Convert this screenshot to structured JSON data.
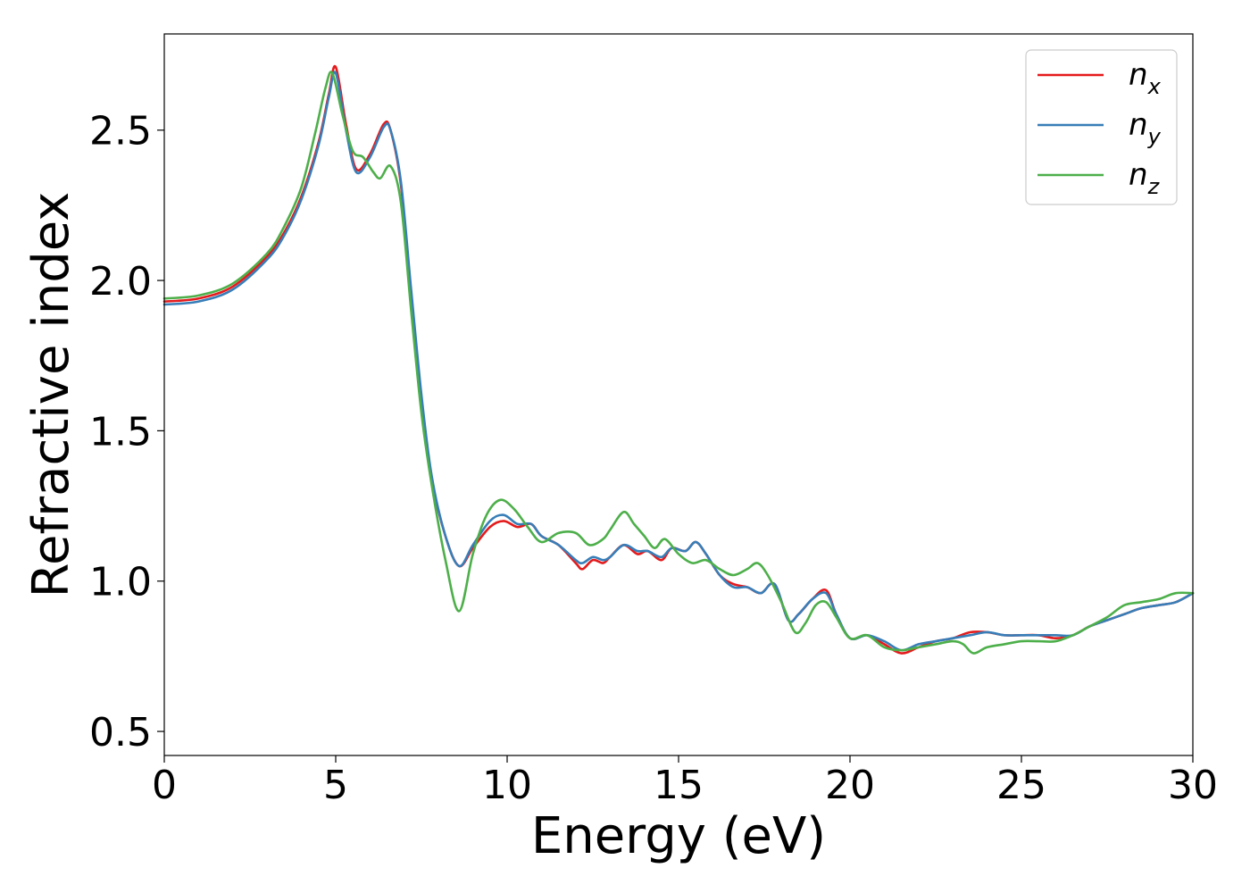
{
  "chart_data": {
    "type": "line",
    "xlabel": "Energy (eV)",
    "ylabel": "Refractive index",
    "xlim": [
      0,
      30
    ],
    "ylim": [
      0.42,
      2.82
    ],
    "xticks": [
      "0",
      "5",
      "10",
      "15",
      "20",
      "25",
      "30"
    ],
    "yticks": [
      "0.5",
      "1.0",
      "1.5",
      "2.0",
      "2.5"
    ],
    "grid": false,
    "legend_position": "top-right",
    "series": [
      {
        "name": "n_x",
        "label_base": "n",
        "label_sub": "x",
        "color": "#e41a1c",
        "x": [
          0,
          1,
          2,
          3,
          3.5,
          4,
          4.5,
          4.8,
          5.0,
          5.3,
          5.6,
          6.0,
          6.4,
          6.6,
          6.9,
          7.2,
          7.5,
          7.8,
          8.2,
          8.6,
          9.0,
          9.5,
          9.9,
          10.3,
          10.7,
          11.0,
          11.5,
          12.0,
          12.2,
          12.5,
          12.8,
          13.0,
          13.4,
          13.8,
          14.1,
          14.5,
          14.8,
          15.2,
          15.5,
          15.8,
          16.2,
          16.6,
          17.0,
          17.4,
          17.8,
          18.2,
          18.5,
          18.9,
          19.3,
          19.6,
          20.0,
          20.5,
          21.0,
          21.5,
          22.0,
          22.5,
          23.0,
          23.5,
          24.0,
          24.5,
          25.0,
          25.5,
          26.0,
          26.5,
          27.0,
          27.5,
          28.0,
          28.5,
          29.0,
          29.5,
          30.0
        ],
        "y": [
          1.93,
          1.94,
          1.98,
          2.08,
          2.16,
          2.28,
          2.46,
          2.62,
          2.71,
          2.52,
          2.37,
          2.42,
          2.52,
          2.5,
          2.32,
          1.95,
          1.6,
          1.34,
          1.15,
          1.05,
          1.11,
          1.18,
          1.2,
          1.18,
          1.19,
          1.15,
          1.12,
          1.06,
          1.04,
          1.07,
          1.06,
          1.08,
          1.12,
          1.09,
          1.1,
          1.07,
          1.11,
          1.1,
          1.13,
          1.09,
          1.02,
          0.99,
          0.98,
          0.96,
          0.99,
          0.87,
          0.89,
          0.94,
          0.97,
          0.89,
          0.81,
          0.82,
          0.79,
          0.76,
          0.78,
          0.8,
          0.81,
          0.83,
          0.83,
          0.82,
          0.82,
          0.82,
          0.81,
          0.82,
          0.85,
          0.87,
          0.89,
          0.91,
          0.92,
          0.93,
          0.96
        ]
      },
      {
        "name": "n_y",
        "label_base": "n",
        "label_sub": "y",
        "color": "#377eb8",
        "x": [
          0,
          1,
          2,
          3,
          3.5,
          4,
          4.5,
          4.8,
          5.0,
          5.3,
          5.6,
          6.0,
          6.4,
          6.6,
          6.9,
          7.2,
          7.5,
          7.8,
          8.2,
          8.6,
          9.0,
          9.5,
          9.9,
          10.3,
          10.7,
          11.0,
          11.5,
          12.0,
          12.2,
          12.5,
          12.8,
          13.0,
          13.4,
          13.8,
          14.1,
          14.5,
          14.8,
          15.2,
          15.5,
          15.8,
          16.2,
          16.6,
          17.0,
          17.4,
          17.8,
          18.2,
          18.5,
          18.9,
          19.3,
          19.6,
          20.0,
          20.5,
          21.0,
          21.5,
          22.0,
          22.5,
          23.0,
          23.5,
          24.0,
          24.5,
          25.0,
          25.5,
          26.0,
          26.5,
          27.0,
          27.5,
          28.0,
          28.5,
          29.0,
          29.5,
          30.0
        ],
        "y": [
          1.92,
          1.93,
          1.97,
          2.07,
          2.15,
          2.27,
          2.45,
          2.61,
          2.69,
          2.5,
          2.36,
          2.41,
          2.51,
          2.5,
          2.33,
          1.97,
          1.62,
          1.35,
          1.15,
          1.05,
          1.12,
          1.2,
          1.22,
          1.19,
          1.19,
          1.15,
          1.12,
          1.07,
          1.06,
          1.08,
          1.07,
          1.08,
          1.12,
          1.1,
          1.1,
          1.08,
          1.11,
          1.1,
          1.13,
          1.09,
          1.02,
          0.98,
          0.98,
          0.96,
          0.99,
          0.87,
          0.89,
          0.94,
          0.96,
          0.89,
          0.81,
          0.82,
          0.8,
          0.77,
          0.79,
          0.8,
          0.81,
          0.82,
          0.83,
          0.82,
          0.82,
          0.82,
          0.82,
          0.82,
          0.85,
          0.87,
          0.89,
          0.91,
          0.92,
          0.93,
          0.96
        ]
      },
      {
        "name": "n_z",
        "label_base": "n",
        "label_sub": "z",
        "color": "#4daf4a",
        "x": [
          0,
          1,
          2,
          3,
          3.5,
          4,
          4.4,
          4.7,
          4.9,
          5.2,
          5.5,
          5.8,
          6.1,
          6.3,
          6.6,
          6.9,
          7.2,
          7.5,
          7.8,
          8.2,
          8.6,
          9.0,
          9.4,
          9.8,
          10.2,
          10.6,
          11.0,
          11.5,
          12.0,
          12.4,
          12.8,
          13.0,
          13.4,
          13.7,
          14.0,
          14.3,
          14.6,
          15.0,
          15.4,
          15.8,
          16.2,
          16.6,
          17.0,
          17.3,
          17.6,
          18.0,
          18.4,
          18.7,
          19.0,
          19.3,
          19.6,
          20.0,
          20.5,
          21.0,
          21.5,
          22.0,
          22.5,
          23.0,
          23.3,
          23.6,
          24.0,
          24.5,
          25.0,
          25.5,
          26.0,
          26.5,
          27.0,
          27.5,
          28.0,
          28.5,
          29.0,
          29.5,
          30.0
        ],
        "y": [
          1.94,
          1.95,
          1.99,
          2.09,
          2.18,
          2.31,
          2.49,
          2.64,
          2.69,
          2.55,
          2.43,
          2.41,
          2.36,
          2.34,
          2.38,
          2.26,
          1.9,
          1.56,
          1.32,
          1.07,
          0.9,
          1.09,
          1.22,
          1.27,
          1.24,
          1.18,
          1.13,
          1.16,
          1.16,
          1.12,
          1.14,
          1.17,
          1.23,
          1.19,
          1.15,
          1.11,
          1.14,
          1.09,
          1.06,
          1.07,
          1.04,
          1.02,
          1.04,
          1.06,
          1.02,
          0.93,
          0.83,
          0.86,
          0.92,
          0.93,
          0.88,
          0.81,
          0.82,
          0.78,
          0.77,
          0.78,
          0.79,
          0.8,
          0.79,
          0.76,
          0.78,
          0.79,
          0.8,
          0.8,
          0.8,
          0.82,
          0.85,
          0.88,
          0.92,
          0.93,
          0.94,
          0.96,
          0.96
        ]
      }
    ]
  }
}
